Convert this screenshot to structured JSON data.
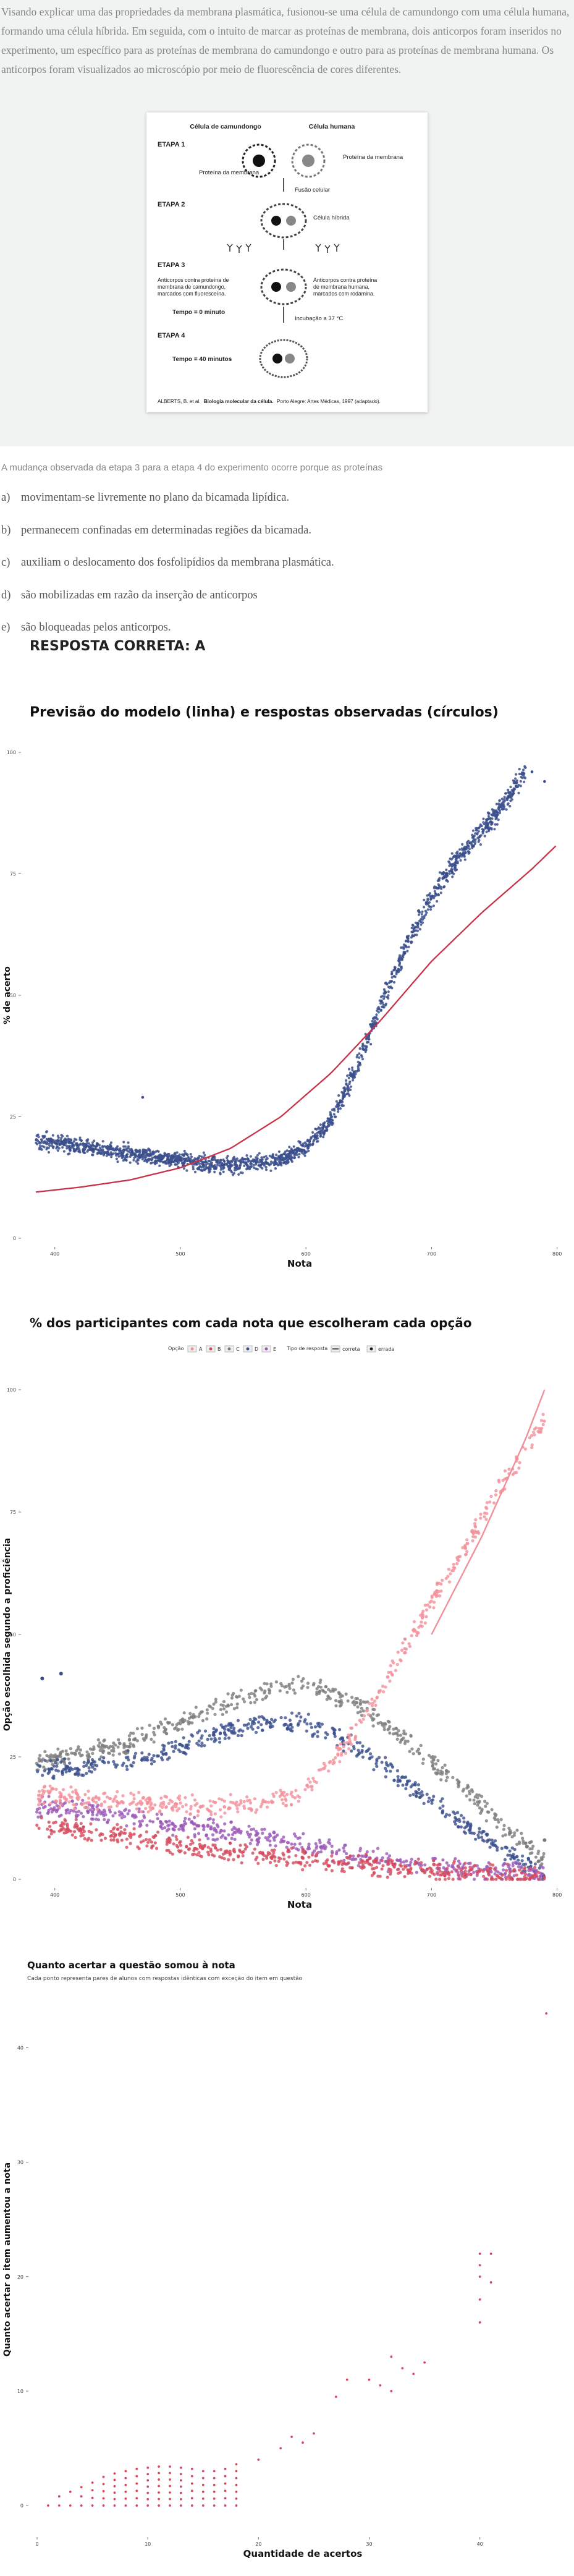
{
  "question": {
    "intro": "Visando explicar uma das propriedades da membrana plasmática, fusionou-se uma célula de camundongo com uma célula humana, formando uma célula híbrida. Em seguida, com o intuito de marcar as proteínas de membrana, dois anticorpos foram inseridos no experimento, um específico para as proteínas de membrana do camundongo e outro para as proteínas de membrana humana. Os anticorpos foram visualizados ao microscópio por meio de fluorescência de cores diferentes.",
    "figure": {
      "cell_mouse": "Célula de camundongo",
      "cell_human": "Célula humana",
      "stage1": "ETAPA 1",
      "stage2": "ETAPA 2",
      "stage3": "ETAPA 3",
      "stage4": "ETAPA 4",
      "protein_left": "Proteína da membrana",
      "protein_right": "Proteína da membrana",
      "fusion": "Fusão celular",
      "hybrid": "Célula híbrida",
      "ab_mouse": "Anticorpos contra proteína de membrana de camundongo, marcados com fluoresceína.",
      "ab_human": "Anticorpos contra proteína de membrana humana, marcados com rodamina.",
      "time0": "Tempo = 0 minuto",
      "incubation": "Incubação a 37 °C",
      "time40": "Tempo = 40 minutos",
      "credit_a": "ALBERTS, B. et al.",
      "credit_b": "Biologia molecular da célula.",
      "credit_c": "Porto Alegre: Artes Médicas, 1997 (adaptado)."
    },
    "stem": "A mudança observada da etapa 3 para a etapa 4 do experimento ocorre porque as proteínas",
    "options": [
      {
        "letter": "a)",
        "text": "movimentam-se livremente no plano da bicamada lipídica."
      },
      {
        "letter": "b)",
        "text": "permanecem confinadas em determinadas regiões da bicamada."
      },
      {
        "letter": "c)",
        "text": "auxiliam o deslocamento dos fosfolipídios da membrana plasmática."
      },
      {
        "letter": "d)",
        "text": "são mobilizadas em razão da inserção de anticorpos"
      },
      {
        "letter": "e)",
        "text": "são bloqueadas pelos anticorpos."
      }
    ],
    "answer": "RESPOSTA CORRETA: A"
  },
  "chart_data": [
    {
      "type": "scatter",
      "title": "Previsão do modelo (linha) e respostas observadas (círculos)",
      "xlabel": "Nota",
      "ylabel": "% de acerto",
      "xlim": [
        380,
        810
      ],
      "ylim": [
        0,
        100
      ],
      "xticks": [
        "400",
        "500",
        "600",
        "700",
        "800"
      ],
      "yticks": [
        "0",
        "25",
        "50",
        "75",
        "100"
      ],
      "grid": false,
      "colors": {
        "points": "#3b4f8c",
        "line": "#c8334a"
      },
      "series": [
        {
          "kind": "points",
          "profile": [
            [
              385,
              20
            ],
            [
              420,
              19
            ],
            [
              460,
              17.5
            ],
            [
              500,
              16
            ],
            [
              540,
              15
            ],
            [
              580,
              16
            ],
            [
              600,
              19
            ],
            [
              620,
              24
            ],
            [
              640,
              35
            ],
            [
              660,
              48
            ],
            [
              680,
              60
            ],
            [
              700,
              70
            ],
            [
              720,
              78
            ],
            [
              740,
              84
            ],
            [
              760,
              90
            ],
            [
              775,
              96
            ]
          ]
        },
        {
          "kind": "line",
          "profile": [
            [
              385,
              9.5
            ],
            [
              420,
              10.5
            ],
            [
              460,
              12
            ],
            [
              500,
              14.5
            ],
            [
              540,
              18.5
            ],
            [
              580,
              25
            ],
            [
              620,
              34
            ],
            [
              660,
              45
            ],
            [
              700,
              57
            ],
            [
              740,
              67
            ],
            [
              780,
              76
            ],
            [
              800,
              81
            ]
          ]
        }
      ]
    },
    {
      "type": "scatter",
      "title": "% dos participantes com cada nota que escolheram cada opção",
      "xlabel": "Nota",
      "ylabel": "Opção escolhida segundo a proficiência",
      "xlim": [
        380,
        810
      ],
      "ylim": [
        0,
        100
      ],
      "xticks": [
        "400",
        "500",
        "600",
        "700",
        "800"
      ],
      "yticks": [
        "0",
        "25",
        "50",
        "75",
        "100"
      ],
      "grid": false,
      "legend": {
        "position": "top",
        "option_title": "Opção",
        "type_title": "Tipo de resposta",
        "type_correct": "correta",
        "type_wrong": "errada"
      },
      "series": [
        {
          "name": "A",
          "color": "#f2909a",
          "profile": [
            [
              385,
              17
            ],
            [
              450,
              16
            ],
            [
              500,
              15
            ],
            [
              560,
              15
            ],
            [
              600,
              18
            ],
            [
              640,
              30
            ],
            [
              680,
              48
            ],
            [
              720,
              65
            ],
            [
              760,
              82
            ],
            [
              790,
              94
            ]
          ],
          "line": [
            [
              700,
              50
            ],
            [
              740,
              70
            ],
            [
              775,
              90
            ],
            [
              790,
              100
            ]
          ]
        },
        {
          "name": "B",
          "color": "#d44a5c",
          "profile": [
            [
              385,
              11
            ],
            [
              450,
              9
            ],
            [
              500,
              7
            ],
            [
              560,
              5
            ],
            [
              620,
              3.5
            ],
            [
              680,
              2
            ],
            [
              740,
              1.5
            ],
            [
              790,
              0.5
            ]
          ]
        },
        {
          "name": "C",
          "color": "#7c7c7c",
          "profile": [
            [
              385,
              24
            ],
            [
              450,
              27
            ],
            [
              500,
              32
            ],
            [
              560,
              38
            ],
            [
              600,
              40
            ],
            [
              640,
              36
            ],
            [
              680,
              28
            ],
            [
              720,
              20
            ],
            [
              760,
              10
            ],
            [
              790,
              4
            ]
          ]
        },
        {
          "name": "D",
          "color": "#3b4f8c",
          "profile": [
            [
              385,
              22
            ],
            [
              450,
              24
            ],
            [
              500,
              27
            ],
            [
              560,
              32
            ],
            [
              600,
              32
            ],
            [
              640,
              27
            ],
            [
              680,
              20
            ],
            [
              720,
              12
            ],
            [
              760,
              5
            ],
            [
              790,
              1
            ]
          ]
        },
        {
          "name": "E",
          "color": "#9b59b6",
          "profile": [
            [
              385,
              15
            ],
            [
              450,
              13
            ],
            [
              500,
              11
            ],
            [
              560,
              9
            ],
            [
              600,
              7
            ],
            [
              640,
              5
            ],
            [
              680,
              3
            ],
            [
              720,
              2
            ],
            [
              790,
              1
            ]
          ]
        }
      ]
    },
    {
      "type": "scatter",
      "title": "Quanto acertar a questão somou à nota",
      "subtitle": "Cada ponto representa pares de alunos com respostas idênticas com exceção do item em questão",
      "xlabel": "Quantidade de acertos",
      "ylabel": "Quanto acertar o item aumentou a nota",
      "xlim": [
        0,
        48
      ],
      "ylim": [
        -2,
        45
      ],
      "xticks": [
        "0",
        "10",
        "20",
        "30",
        "40"
      ],
      "yticks": [
        "0",
        "10",
        "20",
        "30",
        "40"
      ],
      "grid": false,
      "colors": {
        "points": "#d44a5c"
      },
      "points": [
        [
          1,
          0.5
        ],
        [
          2,
          0.8
        ],
        [
          3,
          1.2
        ],
        [
          4,
          1.6
        ],
        [
          5,
          2
        ],
        [
          6,
          2.5
        ],
        [
          7,
          2.8
        ],
        [
          8,
          3
        ],
        [
          9,
          3.2
        ],
        [
          10,
          3.3
        ],
        [
          11,
          3.4
        ],
        [
          12,
          3.4
        ],
        [
          13,
          3.3
        ],
        [
          14,
          3.2
        ],
        [
          15,
          3
        ],
        [
          16,
          3
        ],
        [
          17,
          3.2
        ],
        [
          18,
          3.6
        ],
        [
          20,
          4
        ],
        [
          22,
          5
        ],
        [
          23,
          6
        ],
        [
          24,
          5.5
        ],
        [
          25,
          6.3
        ],
        [
          27,
          9.5
        ],
        [
          28,
          11
        ],
        [
          30,
          11
        ],
        [
          31,
          10.5
        ],
        [
          32,
          13
        ],
        [
          32,
          10
        ],
        [
          33,
          12
        ],
        [
          34,
          11.5
        ],
        [
          35,
          12.5
        ],
        [
          40,
          16
        ],
        [
          40,
          18
        ],
        [
          40,
          20
        ],
        [
          40,
          21
        ],
        [
          40,
          22
        ],
        [
          41,
          19.5
        ],
        [
          41,
          22
        ],
        [
          46,
          43
        ]
      ]
    }
  ]
}
